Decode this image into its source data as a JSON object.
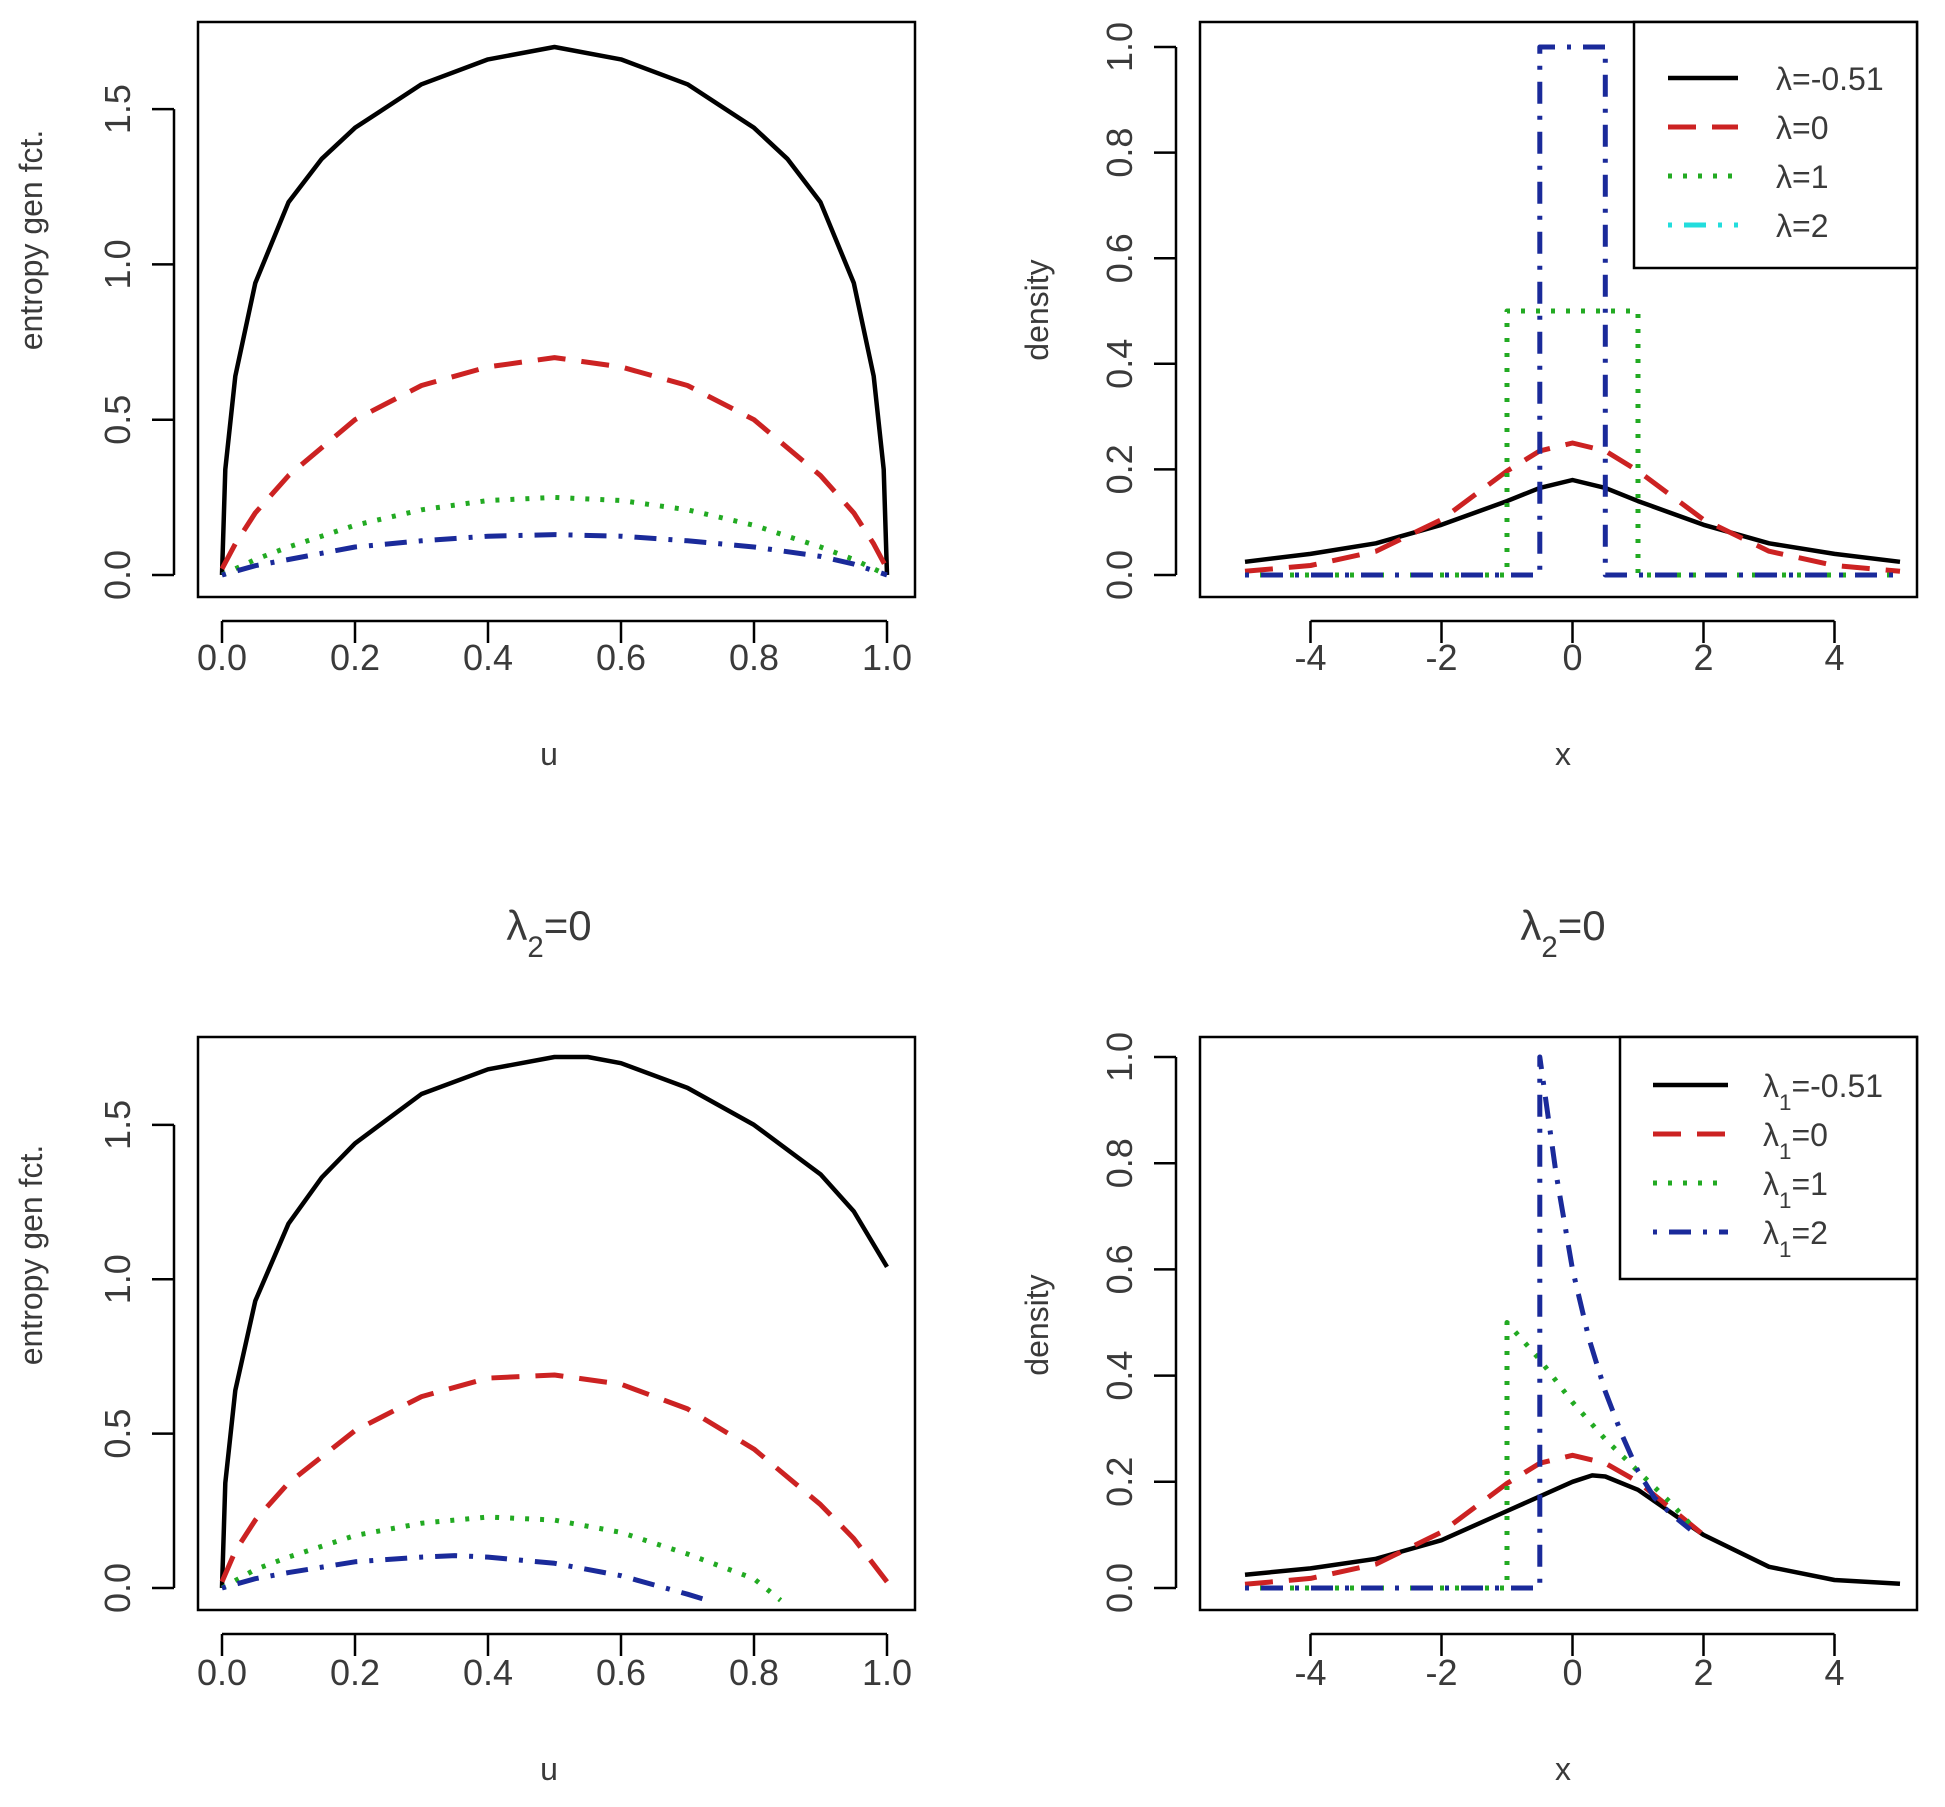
{
  "chart_data": [
    {
      "type": "line",
      "title": "",
      "xlabel": "u",
      "ylabel": "entropy gen fct.",
      "xlim": [
        0,
        1
      ],
      "ylim": [
        0,
        1.7
      ],
      "xticks": [
        "0.0",
        "0.2",
        "0.4",
        "0.6",
        "0.8",
        "1.0"
      ],
      "yticks": [
        "0.0",
        "0.5",
        "1.0",
        "1.5"
      ],
      "series": [
        {
          "name": "black-solid",
          "color": "#000000",
          "dash": "solid",
          "x": [
            0,
            0.005,
            0.02,
            0.05,
            0.1,
            0.15,
            0.2,
            0.3,
            0.4,
            0.5,
            0.6,
            0.7,
            0.8,
            0.85,
            0.9,
            0.95,
            0.98,
            0.995,
            1
          ],
          "y": [
            0,
            0.34,
            0.64,
            0.94,
            1.2,
            1.34,
            1.44,
            1.58,
            1.66,
            1.7,
            1.66,
            1.58,
            1.44,
            1.34,
            1.2,
            0.94,
            0.64,
            0.34,
            0
          ]
        },
        {
          "name": "red-dashed",
          "color": "#cc2222",
          "dash": "dashed",
          "x": [
            0,
            0.02,
            0.05,
            0.1,
            0.2,
            0.3,
            0.4,
            0.5,
            0.6,
            0.7,
            0.8,
            0.9,
            0.95,
            0.98,
            1
          ],
          "y": [
            0.02,
            0.1,
            0.2,
            0.32,
            0.5,
            0.61,
            0.67,
            0.7,
            0.67,
            0.61,
            0.5,
            0.32,
            0.2,
            0.1,
            0.02
          ]
        },
        {
          "name": "green-dotted",
          "color": "#22aa22",
          "dash": "dotted",
          "x": [
            0,
            0.05,
            0.1,
            0.2,
            0.3,
            0.4,
            0.5,
            0.6,
            0.7,
            0.8,
            0.9,
            0.95,
            1
          ],
          "y": [
            0,
            0.05,
            0.09,
            0.16,
            0.21,
            0.24,
            0.25,
            0.24,
            0.21,
            0.16,
            0.09,
            0.05,
            0
          ]
        },
        {
          "name": "blue-dotdash",
          "color": "#1a2a9a",
          "dash": "dotdash",
          "x": [
            0,
            0.05,
            0.1,
            0.2,
            0.3,
            0.4,
            0.5,
            0.6,
            0.7,
            0.8,
            0.9,
            0.95,
            1
          ],
          "y": [
            0,
            0.03,
            0.05,
            0.09,
            0.11,
            0.125,
            0.13,
            0.125,
            0.11,
            0.09,
            0.06,
            0.035,
            0
          ]
        }
      ]
    },
    {
      "type": "line",
      "title": "",
      "xlabel": "x",
      "ylabel": "density",
      "xlim": [
        -5,
        5
      ],
      "ylim": [
        0,
        1
      ],
      "xticks": [
        "-4",
        "-2",
        "0",
        "2",
        "4"
      ],
      "yticks": [
        "0.0",
        "0.2",
        "0.4",
        "0.6",
        "0.8",
        "1.0"
      ],
      "legend": {
        "position": "top-right",
        "entries": [
          {
            "label": "λ=-0.51",
            "color": "#000000",
            "dash": "solid"
          },
          {
            "label": "λ=0",
            "color": "#cc2222",
            "dash": "dashed"
          },
          {
            "label": "λ=1",
            "color": "#22aa22",
            "dash": "dotted"
          },
          {
            "label": "λ=2",
            "color": "#22dddd",
            "dash": "dotdash"
          }
        ]
      },
      "series": [
        {
          "name": "black-solid",
          "color": "#000000",
          "dash": "solid",
          "x": [
            -5,
            -4,
            -3,
            -2,
            -1,
            -0.5,
            0,
            0.5,
            1,
            2,
            3,
            4,
            5
          ],
          "y": [
            0.025,
            0.04,
            0.06,
            0.095,
            0.14,
            0.165,
            0.18,
            0.165,
            0.14,
            0.095,
            0.06,
            0.04,
            0.025
          ]
        },
        {
          "name": "red-dashed",
          "color": "#cc2222",
          "dash": "dashed",
          "x": [
            -5,
            -4,
            -3,
            -2,
            -1,
            -0.5,
            0,
            0.5,
            1,
            2,
            3,
            4,
            5
          ],
          "y": [
            0.007,
            0.018,
            0.045,
            0.105,
            0.197,
            0.235,
            0.25,
            0.235,
            0.197,
            0.105,
            0.045,
            0.018,
            0.007
          ]
        },
        {
          "name": "green-dotted",
          "color": "#22aa22",
          "dash": "dotted",
          "x": [
            -5,
            -1,
            -1,
            1,
            1,
            5
          ],
          "y": [
            0,
            0,
            0.5,
            0.5,
            0,
            0
          ]
        },
        {
          "name": "blue-dotdash",
          "color": "#1a2a9a",
          "dash": "dotdash",
          "x": [
            -5,
            -0.5,
            -0.5,
            0.5,
            0.5,
            5
          ],
          "y": [
            0,
            0,
            1,
            1,
            0,
            0
          ]
        }
      ]
    },
    {
      "type": "line",
      "title": "λ2=0",
      "xlabel": "u",
      "ylabel": "entropy gen fct.",
      "xlim": [
        0,
        1
      ],
      "ylim": [
        0,
        1.72
      ],
      "xticks": [
        "0.0",
        "0.2",
        "0.4",
        "0.6",
        "0.8",
        "1.0"
      ],
      "yticks": [
        "0.0",
        "0.5",
        "1.0",
        "1.5"
      ],
      "series": [
        {
          "name": "black-solid",
          "color": "#000000",
          "dash": "solid",
          "x": [
            0,
            0.005,
            0.02,
            0.05,
            0.1,
            0.15,
            0.2,
            0.3,
            0.4,
            0.5,
            0.55,
            0.6,
            0.7,
            0.8,
            0.9,
            0.95,
            1
          ],
          "y": [
            0,
            0.34,
            0.64,
            0.93,
            1.18,
            1.33,
            1.44,
            1.6,
            1.68,
            1.72,
            1.72,
            1.7,
            1.62,
            1.5,
            1.34,
            1.22,
            1.04
          ]
        },
        {
          "name": "red-dashed",
          "color": "#cc2222",
          "dash": "dashed",
          "x": [
            0,
            0.02,
            0.05,
            0.1,
            0.2,
            0.3,
            0.4,
            0.5,
            0.6,
            0.7,
            0.8,
            0.9,
            0.95,
            1
          ],
          "y": [
            0.02,
            0.12,
            0.22,
            0.34,
            0.51,
            0.62,
            0.68,
            0.69,
            0.66,
            0.58,
            0.45,
            0.27,
            0.16,
            0.02
          ]
        },
        {
          "name": "green-dotted",
          "color": "#22aa22",
          "dash": "dotted",
          "x": [
            0,
            0.05,
            0.1,
            0.2,
            0.3,
            0.4,
            0.5,
            0.6,
            0.7,
            0.8,
            0.84
          ],
          "y": [
            0,
            0.06,
            0.1,
            0.17,
            0.21,
            0.23,
            0.22,
            0.18,
            0.11,
            0.03,
            -0.04
          ]
        },
        {
          "name": "blue-dotdash",
          "color": "#1a2a9a",
          "dash": "dotdash",
          "x": [
            0,
            0.05,
            0.1,
            0.2,
            0.3,
            0.35,
            0.4,
            0.5,
            0.6,
            0.7,
            0.73
          ],
          "y": [
            0,
            0.03,
            0.05,
            0.085,
            0.1,
            0.105,
            0.1,
            0.08,
            0.04,
            -0.02,
            -0.04
          ]
        }
      ]
    },
    {
      "type": "line",
      "title": "λ2=0",
      "xlabel": "x",
      "ylabel": "density",
      "xlim": [
        -5,
        5
      ],
      "ylim": [
        0,
        1
      ],
      "xticks": [
        "-4",
        "-2",
        "0",
        "2",
        "4"
      ],
      "yticks": [
        "0.0",
        "0.2",
        "0.4",
        "0.6",
        "0.8",
        "1.0"
      ],
      "legend": {
        "position": "top-right",
        "entries": [
          {
            "label": "λ1=-0.51",
            "color": "#000000",
            "dash": "solid"
          },
          {
            "label": "λ1=0",
            "color": "#cc2222",
            "dash": "dashed"
          },
          {
            "label": "λ1=1",
            "color": "#22aa22",
            "dash": "dotted"
          },
          {
            "label": "λ1=2",
            "color": "#1a2a9a",
            "dash": "dotdash"
          }
        ]
      },
      "series": [
        {
          "name": "black-solid",
          "color": "#000000",
          "dash": "solid",
          "x": [
            -5,
            -4,
            -3,
            -2,
            -1,
            0,
            0.3,
            0.5,
            1,
            2,
            3,
            4,
            5
          ],
          "y": [
            0.025,
            0.037,
            0.055,
            0.09,
            0.145,
            0.2,
            0.212,
            0.21,
            0.185,
            0.1,
            0.04,
            0.015,
            0.008
          ]
        },
        {
          "name": "red-dashed",
          "color": "#cc2222",
          "dash": "dashed",
          "x": [
            -5,
            -4,
            -3,
            -2,
            -1,
            -0.5,
            0,
            0.5,
            1,
            1.5,
            2
          ],
          "y": [
            0.007,
            0.018,
            0.045,
            0.105,
            0.197,
            0.235,
            0.25,
            0.235,
            0.2,
            0.15,
            0.1
          ]
        },
        {
          "name": "green-dotted",
          "color": "#22aa22",
          "dash": "dotted",
          "x": [
            -5,
            -1,
            -1,
            -0.5,
            0,
            0.5,
            1,
            1.5,
            1.8
          ],
          "y": [
            0,
            0,
            0.5,
            0.43,
            0.35,
            0.28,
            0.22,
            0.16,
            0.12
          ]
        },
        {
          "name": "blue-dotdash",
          "color": "#1a2a9a",
          "dash": "dotdash",
          "x": [
            -5,
            -0.5,
            -0.5,
            -0.25,
            0,
            0.25,
            0.5,
            0.75,
            1,
            1.25,
            1.5,
            1.8
          ],
          "y": [
            0,
            0,
            1,
            0.78,
            0.6,
            0.47,
            0.37,
            0.29,
            0.22,
            0.17,
            0.14,
            0.11
          ]
        }
      ]
    }
  ]
}
